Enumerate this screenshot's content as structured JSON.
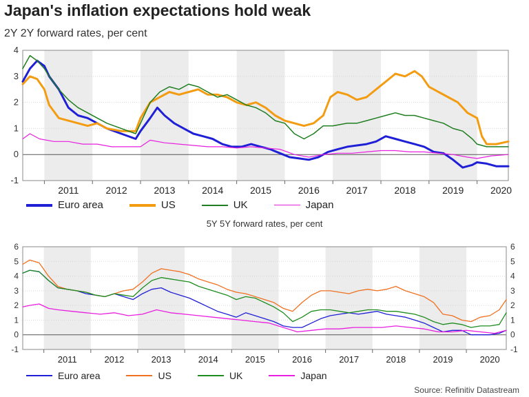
{
  "header": {
    "title": "Japan's inflation expectations hold weak",
    "subtitle": "2Y 2Y forward rates, per cent",
    "subtitle2": "5Y 5Y forward rates, per cent",
    "source": "Source: Refinitiv Datastream"
  },
  "chart_data": [
    {
      "type": "line",
      "title": "2Y 2Y forward rates, per cent",
      "ylim": [
        -1,
        4
      ],
      "yticks": [
        "-1",
        "0",
        "1",
        "2",
        "3",
        "4"
      ],
      "xlim": [
        2010.55,
        2020.65
      ],
      "years": [
        "2011",
        "2012",
        "2013",
        "2014",
        "2015",
        "2016",
        "2017",
        "2018",
        "2019",
        "2020"
      ],
      "series": [
        {
          "name": "Euro area",
          "color": "#1f1fd6",
          "width": 3,
          "x": [
            2010.55,
            2010.7,
            2010.85,
            2011.0,
            2011.1,
            2011.3,
            2011.5,
            2011.7,
            2011.9,
            2012.1,
            2012.3,
            2012.6,
            2012.9,
            2013.0,
            2013.2,
            2013.35,
            2013.5,
            2013.7,
            2013.9,
            2014.1,
            2014.3,
            2014.5,
            2014.7,
            2014.9,
            2015.1,
            2015.3,
            2015.5,
            2015.7,
            2015.9,
            2016.1,
            2016.3,
            2016.5,
            2016.7,
            2016.9,
            2017.1,
            2017.3,
            2017.5,
            2017.7,
            2017.9,
            2018.1,
            2018.3,
            2018.5,
            2018.7,
            2018.9,
            2019.1,
            2019.3,
            2019.5,
            2019.7,
            2019.9,
            2020.0,
            2020.2,
            2020.4,
            2020.65
          ],
          "y": [
            2.8,
            3.3,
            3.6,
            3.4,
            3.0,
            2.5,
            1.8,
            1.5,
            1.4,
            1.2,
            1.0,
            0.8,
            0.6,
            0.9,
            1.4,
            1.8,
            1.5,
            1.2,
            1.0,
            0.8,
            0.7,
            0.6,
            0.4,
            0.3,
            0.3,
            0.4,
            0.3,
            0.2,
            0.05,
            -0.1,
            -0.15,
            -0.2,
            -0.1,
            0.1,
            0.2,
            0.3,
            0.35,
            0.4,
            0.5,
            0.7,
            0.6,
            0.5,
            0.4,
            0.3,
            0.1,
            0.05,
            -0.2,
            -0.5,
            -0.4,
            -0.3,
            -0.35,
            -0.45,
            -0.45
          ]
        },
        {
          "name": "US",
          "color": "#f39c12",
          "width": 3,
          "x": [
            2010.55,
            2010.7,
            2010.85,
            2011.0,
            2011.1,
            2011.3,
            2011.5,
            2011.7,
            2011.9,
            2012.1,
            2012.3,
            2012.6,
            2012.9,
            2013.0,
            2013.2,
            2013.4,
            2013.6,
            2013.8,
            2014.0,
            2014.2,
            2014.4,
            2014.6,
            2014.8,
            2015.0,
            2015.2,
            2015.4,
            2015.6,
            2015.8,
            2016.0,
            2016.2,
            2016.4,
            2016.6,
            2016.8,
            2016.95,
            2017.1,
            2017.3,
            2017.5,
            2017.7,
            2017.9,
            2018.1,
            2018.3,
            2018.5,
            2018.7,
            2018.85,
            2019.0,
            2019.2,
            2019.4,
            2019.6,
            2019.8,
            2020.0,
            2020.1,
            2020.2,
            2020.4,
            2020.65
          ],
          "y": [
            2.7,
            3.0,
            2.9,
            2.5,
            1.9,
            1.4,
            1.3,
            1.2,
            1.1,
            1.2,
            1.0,
            0.9,
            0.9,
            1.4,
            2.0,
            2.2,
            2.4,
            2.3,
            2.4,
            2.5,
            2.3,
            2.3,
            2.2,
            2.0,
            1.9,
            2.0,
            1.8,
            1.5,
            1.3,
            1.2,
            1.1,
            1.2,
            1.5,
            2.2,
            2.4,
            2.3,
            2.1,
            2.2,
            2.5,
            2.8,
            3.1,
            3.0,
            3.2,
            3.0,
            2.6,
            2.4,
            2.2,
            2.0,
            1.6,
            1.4,
            0.7,
            0.4,
            0.4,
            0.5
          ]
        },
        {
          "name": "UK",
          "color": "#1e7d1e",
          "width": 1.5,
          "x": [
            2010.55,
            2010.7,
            2010.85,
            2011.0,
            2011.1,
            2011.3,
            2011.5,
            2011.7,
            2011.9,
            2012.1,
            2012.3,
            2012.6,
            2012.9,
            2013.0,
            2013.2,
            2013.4,
            2013.6,
            2013.8,
            2014.0,
            2014.2,
            2014.4,
            2014.6,
            2014.8,
            2015.0,
            2015.2,
            2015.4,
            2015.6,
            2015.8,
            2016.0,
            2016.2,
            2016.4,
            2016.6,
            2016.8,
            2017.0,
            2017.3,
            2017.5,
            2017.7,
            2017.9,
            2018.1,
            2018.3,
            2018.5,
            2018.7,
            2018.9,
            2019.1,
            2019.3,
            2019.5,
            2019.7,
            2019.9,
            2020.0,
            2020.2,
            2020.4,
            2020.65
          ],
          "y": [
            3.3,
            3.8,
            3.6,
            3.3,
            3.0,
            2.5,
            2.1,
            1.8,
            1.6,
            1.4,
            1.2,
            1.0,
            0.8,
            1.2,
            2.0,
            2.4,
            2.6,
            2.5,
            2.7,
            2.6,
            2.4,
            2.2,
            2.3,
            2.1,
            1.9,
            1.8,
            1.6,
            1.3,
            1.2,
            0.8,
            0.6,
            0.8,
            1.1,
            1.1,
            1.2,
            1.2,
            1.3,
            1.4,
            1.5,
            1.6,
            1.5,
            1.5,
            1.4,
            1.3,
            1.2,
            1.0,
            0.9,
            0.6,
            0.4,
            0.3,
            0.3,
            0.3
          ]
        },
        {
          "name": "Japan",
          "color": "#e81ee0",
          "width": 1.2,
          "x": [
            2010.55,
            2010.7,
            2010.9,
            2011.2,
            2011.5,
            2011.8,
            2012.1,
            2012.4,
            2012.7,
            2013.0,
            2013.2,
            2013.5,
            2013.8,
            2014.1,
            2014.4,
            2014.7,
            2015.0,
            2015.3,
            2015.6,
            2015.9,
            2016.2,
            2016.5,
            2016.8,
            2017.1,
            2017.4,
            2017.7,
            2018.0,
            2018.3,
            2018.6,
            2018.9,
            2019.2,
            2019.5,
            2019.8,
            2020.0,
            2020.3,
            2020.65
          ],
          "y": [
            0.6,
            0.8,
            0.6,
            0.5,
            0.5,
            0.4,
            0.4,
            0.3,
            0.3,
            0.3,
            0.55,
            0.45,
            0.4,
            0.35,
            0.3,
            0.3,
            0.25,
            0.3,
            0.25,
            0.2,
            0.0,
            -0.1,
            0.0,
            0.05,
            0.05,
            0.1,
            0.15,
            0.15,
            0.1,
            0.1,
            0.05,
            0.0,
            -0.1,
            -0.15,
            -0.05,
            0.0
          ]
        }
      ]
    },
    {
      "type": "line",
      "title": "5Y 5Y forward rates, per cent",
      "ylim": [
        -1,
        6
      ],
      "yticks": [
        "-1",
        "0",
        "1",
        "2",
        "3",
        "4",
        "5",
        "6"
      ],
      "xlim": [
        2010.55,
        2020.85
      ],
      "years": [
        "2011",
        "2012",
        "2013",
        "2014",
        "2015",
        "2016",
        "2017",
        "2018",
        "2019",
        "2020"
      ],
      "series": [
        {
          "name": "Euro area",
          "color": "#1f1fd6",
          "width": 1.3,
          "x": [
            2010.55,
            2010.7,
            2010.9,
            2011.1,
            2011.3,
            2011.5,
            2011.7,
            2011.9,
            2012.1,
            2012.3,
            2012.5,
            2012.7,
            2012.9,
            2013.1,
            2013.3,
            2013.5,
            2013.7,
            2013.9,
            2014.1,
            2014.3,
            2014.5,
            2014.7,
            2014.9,
            2015.1,
            2015.3,
            2015.5,
            2015.7,
            2015.9,
            2016.1,
            2016.3,
            2016.5,
            2016.7,
            2016.9,
            2017.1,
            2017.3,
            2017.5,
            2017.7,
            2017.9,
            2018.1,
            2018.3,
            2018.5,
            2018.7,
            2018.9,
            2019.1,
            2019.3,
            2019.5,
            2019.7,
            2019.9,
            2020.1,
            2020.3,
            2020.5,
            2020.7,
            2020.85
          ],
          "y": [
            4.2,
            4.4,
            4.3,
            3.7,
            3.2,
            3.1,
            3.0,
            2.8,
            2.7,
            2.6,
            2.8,
            2.6,
            2.4,
            2.8,
            3.1,
            3.2,
            2.9,
            2.7,
            2.5,
            2.2,
            1.9,
            1.6,
            1.4,
            1.2,
            1.5,
            1.3,
            1.1,
            0.9,
            0.6,
            0.5,
            0.5,
            0.8,
            1.1,
            1.3,
            1.4,
            1.5,
            1.4,
            1.5,
            1.6,
            1.4,
            1.3,
            1.2,
            1.0,
            0.8,
            0.5,
            0.2,
            0.3,
            0.3,
            0.0,
            0.0,
            0.0,
            0.1,
            0.3
          ]
        },
        {
          "name": "US",
          "color": "#f07020",
          "width": 1.3,
          "x": [
            2010.55,
            2010.7,
            2010.9,
            2011.1,
            2011.3,
            2011.5,
            2011.7,
            2011.9,
            2012.1,
            2012.3,
            2012.5,
            2012.7,
            2012.9,
            2013.1,
            2013.3,
            2013.5,
            2013.7,
            2013.9,
            2014.1,
            2014.3,
            2014.5,
            2014.7,
            2014.9,
            2015.1,
            2015.3,
            2015.5,
            2015.7,
            2015.9,
            2016.1,
            2016.3,
            2016.5,
            2016.7,
            2016.9,
            2017.1,
            2017.3,
            2017.5,
            2017.7,
            2017.9,
            2018.1,
            2018.3,
            2018.5,
            2018.7,
            2018.9,
            2019.1,
            2019.3,
            2019.5,
            2019.7,
            2019.9,
            2020.1,
            2020.3,
            2020.5,
            2020.7,
            2020.85
          ],
          "y": [
            4.8,
            5.1,
            4.9,
            4.0,
            3.3,
            3.1,
            3.0,
            2.9,
            2.7,
            2.6,
            2.8,
            3.0,
            3.1,
            3.6,
            4.2,
            4.5,
            4.4,
            4.3,
            4.1,
            3.8,
            3.6,
            3.4,
            3.1,
            2.9,
            2.8,
            2.6,
            2.4,
            2.2,
            1.8,
            1.6,
            2.2,
            2.7,
            3.0,
            3.0,
            2.9,
            2.8,
            3.0,
            3.1,
            3.0,
            3.1,
            3.3,
            3.0,
            2.8,
            2.6,
            2.2,
            1.4,
            1.3,
            1.0,
            0.9,
            1.2,
            1.3,
            1.7,
            2.4
          ]
        },
        {
          "name": "UK",
          "color": "#1e8c1e",
          "width": 1.3,
          "x": [
            2010.55,
            2010.7,
            2010.9,
            2011.1,
            2011.3,
            2011.5,
            2011.7,
            2011.9,
            2012.1,
            2012.3,
            2012.5,
            2012.7,
            2012.9,
            2013.1,
            2013.3,
            2013.5,
            2013.7,
            2013.9,
            2014.1,
            2014.3,
            2014.5,
            2014.7,
            2014.9,
            2015.1,
            2015.3,
            2015.5,
            2015.7,
            2015.9,
            2016.1,
            2016.3,
            2016.5,
            2016.7,
            2016.9,
            2017.1,
            2017.3,
            2017.5,
            2017.7,
            2017.9,
            2018.1,
            2018.3,
            2018.5,
            2018.7,
            2018.9,
            2019.1,
            2019.3,
            2019.5,
            2019.7,
            2019.9,
            2020.1,
            2020.3,
            2020.5,
            2020.7,
            2020.85
          ],
          "y": [
            4.2,
            4.4,
            4.3,
            3.7,
            3.2,
            3.1,
            3.0,
            2.9,
            2.7,
            2.6,
            2.8,
            2.7,
            2.6,
            3.2,
            3.7,
            3.9,
            3.8,
            3.7,
            3.6,
            3.3,
            3.1,
            2.9,
            2.7,
            2.4,
            2.6,
            2.5,
            2.2,
            1.9,
            1.5,
            0.9,
            1.2,
            1.6,
            1.7,
            1.7,
            1.6,
            1.5,
            1.6,
            1.7,
            1.7,
            1.6,
            1.6,
            1.5,
            1.4,
            1.2,
            0.9,
            0.7,
            0.8,
            0.7,
            0.5,
            0.6,
            0.6,
            0.7,
            1.5
          ]
        },
        {
          "name": "Japan",
          "color": "#e81ee0",
          "width": 1.3,
          "x": [
            2010.55,
            2010.7,
            2010.9,
            2011.1,
            2011.3,
            2011.6,
            2011.9,
            2012.2,
            2012.5,
            2012.8,
            2013.1,
            2013.4,
            2013.7,
            2014.0,
            2014.3,
            2014.6,
            2014.9,
            2015.2,
            2015.5,
            2015.8,
            2016.1,
            2016.4,
            2016.7,
            2017.0,
            2017.3,
            2017.6,
            2017.9,
            2018.2,
            2018.5,
            2018.8,
            2019.1,
            2019.4,
            2019.7,
            2020.0,
            2020.3,
            2020.6,
            2020.85
          ],
          "y": [
            1.9,
            2.0,
            2.1,
            1.8,
            1.7,
            1.6,
            1.5,
            1.4,
            1.5,
            1.3,
            1.4,
            1.7,
            1.5,
            1.4,
            1.3,
            1.2,
            1.1,
            1.0,
            0.9,
            0.8,
            0.5,
            0.2,
            0.3,
            0.4,
            0.4,
            0.5,
            0.5,
            0.5,
            0.6,
            0.5,
            0.4,
            0.2,
            0.2,
            0.3,
            0.2,
            0.1,
            0.3
          ]
        }
      ]
    }
  ],
  "legend_top": [
    "Euro area",
    "US",
    "UK",
    "Japan"
  ],
  "legend_bottom": [
    "Euro area",
    "US",
    "UK",
    "Japan"
  ]
}
